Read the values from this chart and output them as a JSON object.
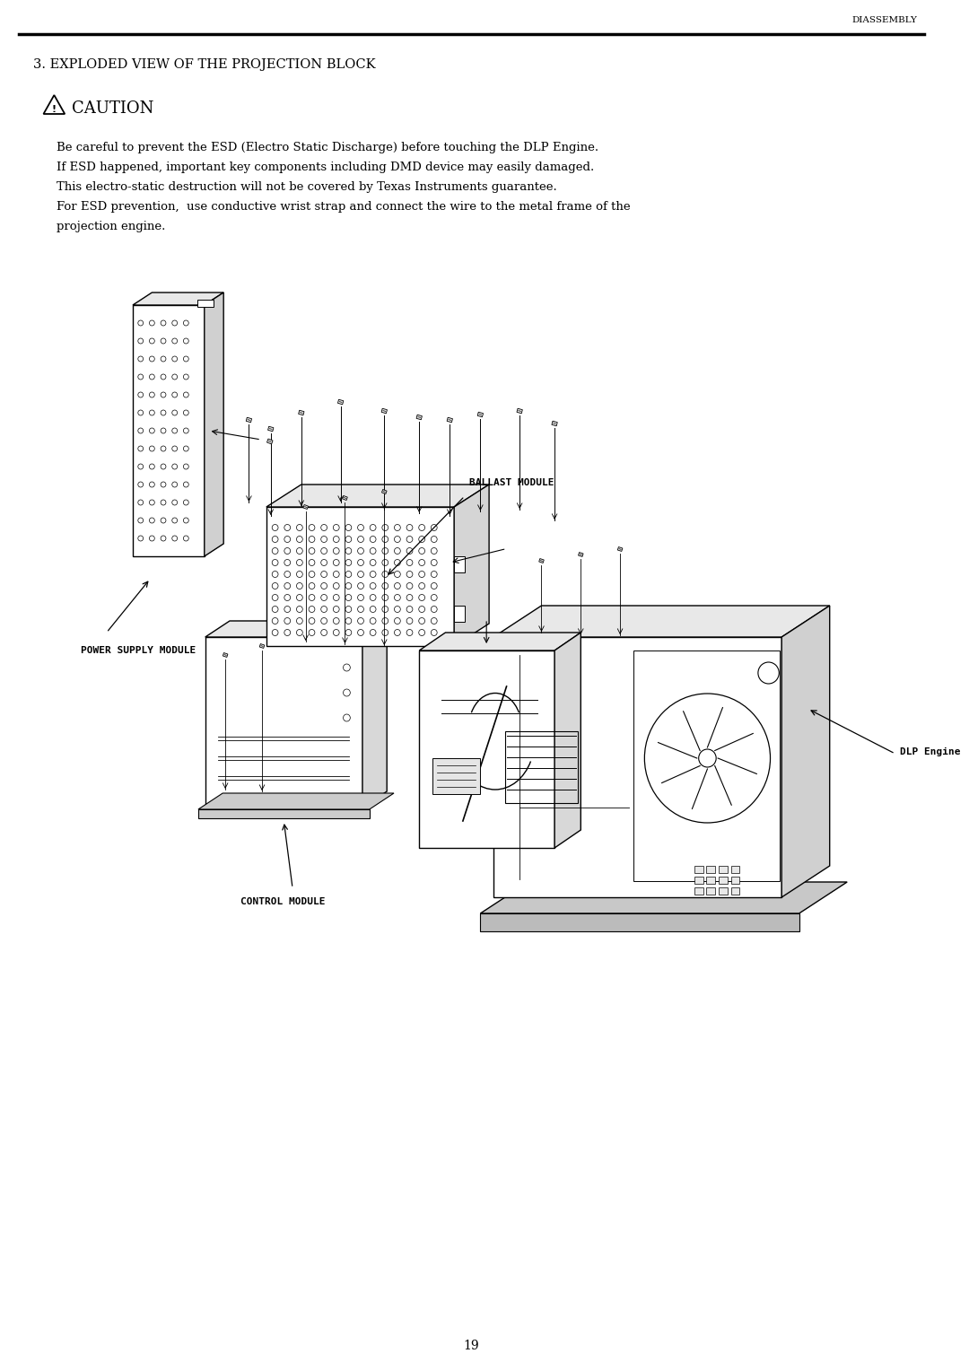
{
  "header_text": "DIASSEMBLY",
  "section_title": "3. EXPLODED VIEW OF THE PROJECTION BLOCK",
  "caution_title": "CAUTION",
  "caution_lines": [
    "Be careful to prevent the ESD (Electro Static Discharge) before touching the DLP Engine.",
    "If ESD happened, important key components including DMD device may easily damaged.",
    "This electro-static destruction will not be covered by Texas Instruments guarantee.",
    "For ESD prevention,  use conductive wrist strap and connect the wire to the metal frame of the",
    "projection engine."
  ],
  "page_number": "19",
  "bg_color": "#ffffff",
  "text_color": "#000000",
  "label_ballast": "BALLAST MODULE",
  "label_dlp": "DLP Engine",
  "label_power": "POWER SUPPLY MODULE",
  "label_control": "CONTROL MODULE"
}
